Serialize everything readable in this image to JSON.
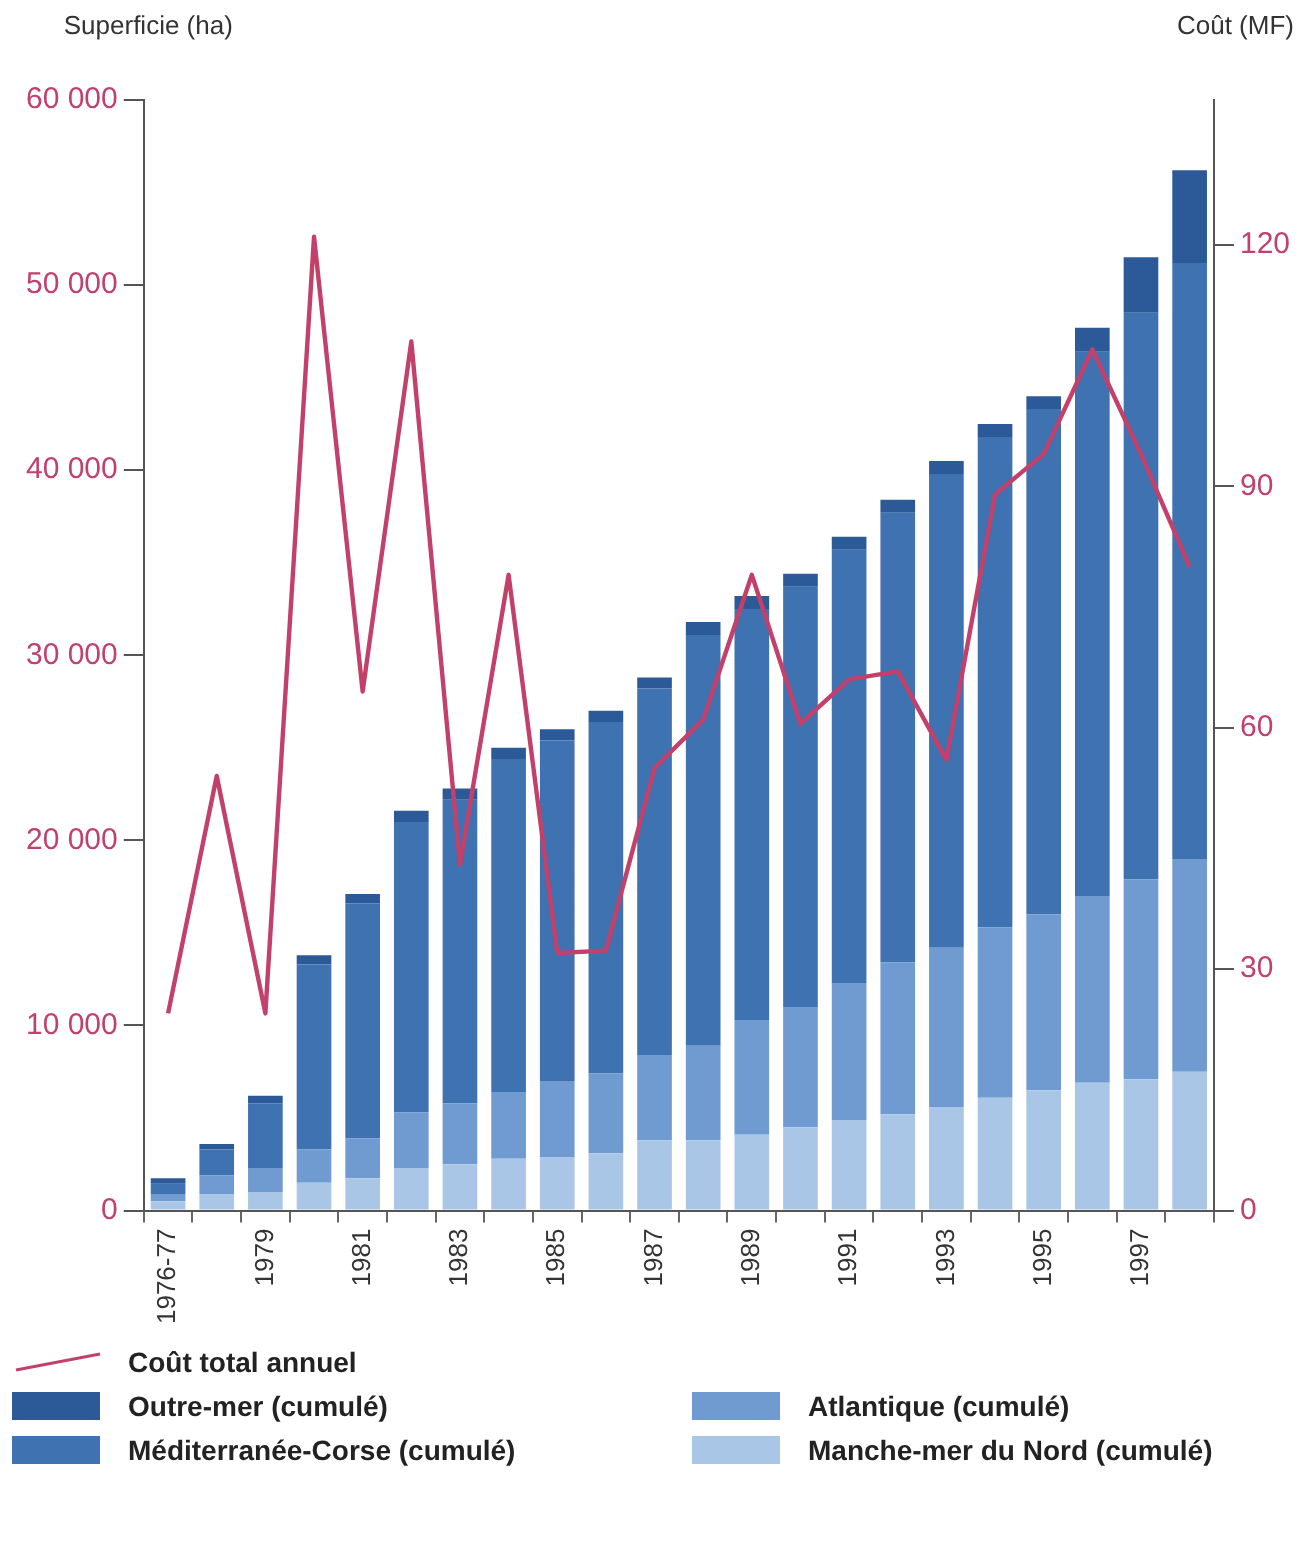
{
  "chart_data": {
    "type": "bar",
    "stacked": true,
    "ylabel": "Superficie (ha)",
    "y2label": "Coût (MF)",
    "categories": [
      "1976-77",
      null,
      "1979",
      null,
      "1981",
      null,
      "1983",
      null,
      "1985",
      null,
      "1987",
      null,
      "1989",
      null,
      "1991",
      null,
      "1993",
      null,
      "1995",
      null,
      "1997",
      null
    ],
    "series": [
      {
        "name": "Manche-mer du Nord (cumulé)",
        "color": "#a9c6e6",
        "values": [
          500,
          900,
          1000,
          1500,
          1750,
          2300,
          2500,
          2800,
          2900,
          3100,
          3800,
          3800,
          4100,
          4500,
          4900,
          5200,
          5600,
          6100,
          6500,
          6900,
          7100,
          7500
        ]
      },
      {
        "name": "Atlantique (cumulé)",
        "color": "#6f9bd0",
        "values": [
          400,
          1000,
          1300,
          1800,
          2150,
          3000,
          3300,
          3600,
          4100,
          4300,
          4600,
          5100,
          6200,
          6500,
          7400,
          8200,
          8600,
          9200,
          9500,
          10100,
          10800,
          11500
        ]
      },
      {
        "name": "Méditerranée-Corse (cumulé)",
        "color": "#3f72b0",
        "values": [
          550,
          1400,
          3500,
          10000,
          12700,
          15700,
          16400,
          18000,
          18400,
          19000,
          19800,
          22200,
          22200,
          22700,
          23400,
          24300,
          25600,
          26500,
          27300,
          29400,
          30600,
          32200
        ]
      },
      {
        "name": "Outre-mer (cumulé)",
        "color": "#2c5a98",
        "values": [
          300,
          300,
          400,
          500,
          500,
          600,
          600,
          600,
          600,
          600,
          600,
          700,
          700,
          700,
          700,
          700,
          700,
          700,
          700,
          1300,
          3000,
          5000
        ]
      },
      {
        "name": "Coût total annuel",
        "type": "line",
        "axis": "y2",
        "color": "#c2406a",
        "values": [
          24.5,
          54,
          24.5,
          121,
          64.5,
          108,
          43,
          79,
          32,
          32.3,
          55,
          61,
          79,
          60.5,
          66,
          67,
          56,
          89,
          94,
          107,
          94,
          80
        ]
      }
    ],
    "ylim": [
      0,
      60000
    ],
    "yticks": [
      {
        "value": 0,
        "label": "0"
      },
      {
        "value": 10000,
        "label": "10 000"
      },
      {
        "value": 20000,
        "label": "20 000"
      },
      {
        "value": 30000,
        "label": "30 000"
      },
      {
        "value": 40000,
        "label": "40 000"
      },
      {
        "value": 50000,
        "label": "50 000"
      },
      {
        "value": 60000,
        "label": "60 000"
      }
    ],
    "y2lim": [
      0,
      138
    ],
    "y2ticks": [
      0,
      30,
      60,
      90,
      120
    ],
    "grid": false,
    "legend": "bottom",
    "marker": "none",
    "line_style": "solid"
  }
}
